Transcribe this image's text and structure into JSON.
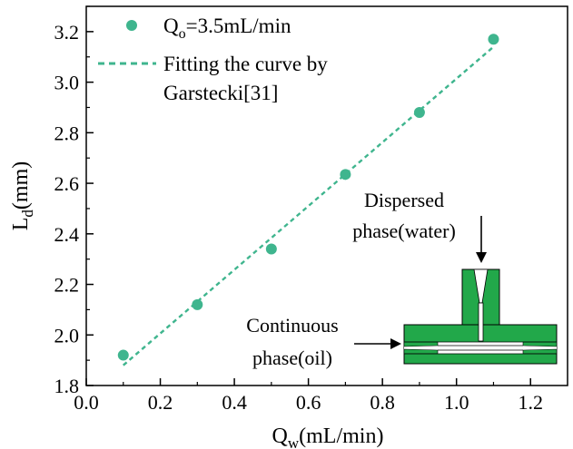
{
  "colors": {
    "series": "#3fb58e",
    "inset_green": "#22a84a",
    "axis": "#000000"
  },
  "chart_data": {
    "type": "scatter",
    "xlabel": "Q_w(mL/min)",
    "ylabel": "L_d(mm)",
    "xlim": [
      0.0,
      1.3
    ],
    "ylim": [
      1.8,
      3.3
    ],
    "xticks": [
      "0.0",
      "0.2",
      "0.4",
      "0.6",
      "0.8",
      "1.0",
      "1.2"
    ],
    "yticks": [
      "1.8",
      "2.0",
      "2.2",
      "2.4",
      "2.6",
      "2.8",
      "3.0",
      "3.2"
    ],
    "grid": false,
    "legend_position": "top-left",
    "series": [
      {
        "name": "Q_o=3.5mL/min",
        "kind": "scatter",
        "x": [
          0.1,
          0.3,
          0.5,
          0.7,
          0.9,
          1.1
        ],
        "y": [
          1.92,
          2.12,
          2.34,
          2.635,
          2.88,
          3.17
        ]
      },
      {
        "name": "Fitting the curve by Garstecki[31]",
        "kind": "dashed-line",
        "x": [
          0.1,
          1.1
        ],
        "y": [
          1.88,
          3.14
        ]
      }
    ],
    "legend": {
      "scatter": {
        "main": "Q",
        "sub": "o",
        "rest": "=3.5mL/min"
      },
      "fit_line1": "Fitting the curve by",
      "fit_line2": "Garstecki[31]"
    },
    "axis_titles": {
      "x": {
        "main": "Q",
        "sub": "w",
        "rest": "(mL/min)"
      },
      "y": {
        "main": "L",
        "sub": "d",
        "rest": "(mm)"
      }
    },
    "annotations": {
      "dispersed_line1": "Dispersed",
      "dispersed_line2": "phase(water)",
      "continuous_line1": "Continuous",
      "continuous_line2": "phase(oil)"
    }
  }
}
